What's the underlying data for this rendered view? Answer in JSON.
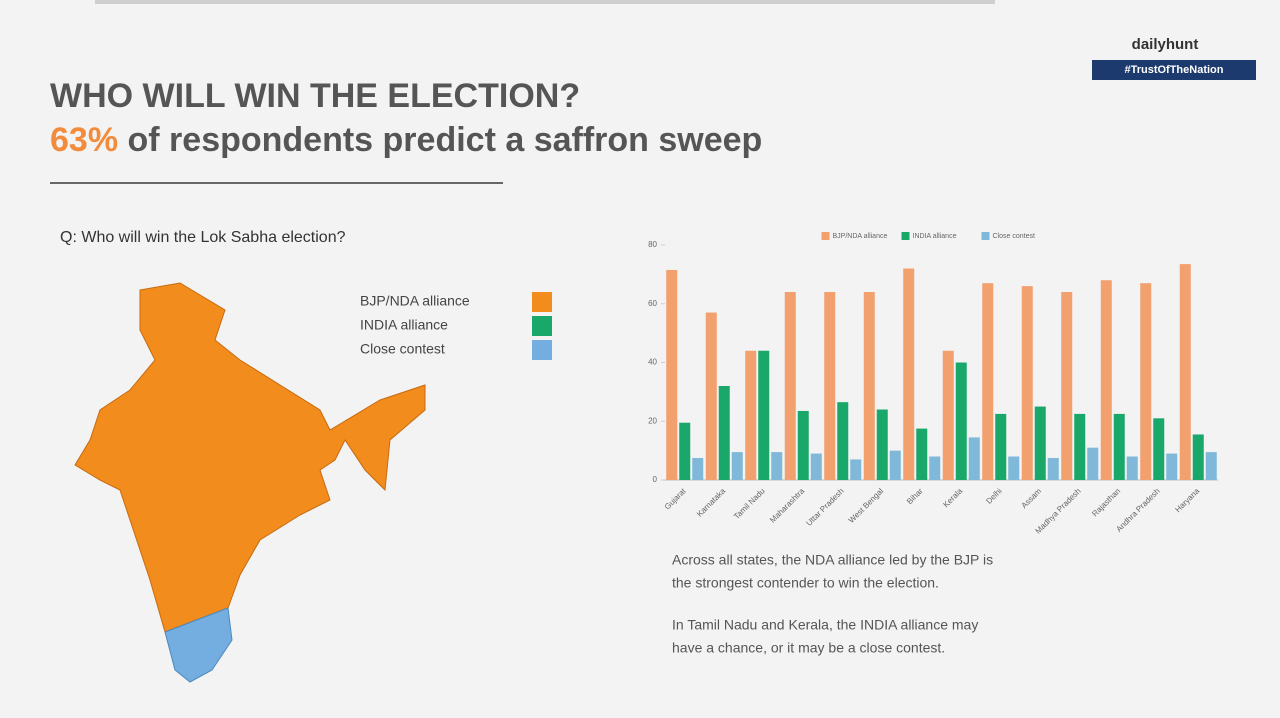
{
  "header": {
    "title": "WHO WILL WIN THE ELECTION?",
    "highlight": "63%",
    "subtitle": "of respondents predict a saffron sweep"
  },
  "brand": {
    "logo": "dailyhunt",
    "tag": "#TrustOfTheNation"
  },
  "map": {
    "question": "Q: Who will win the Lok Sabha election?",
    "legend": [
      {
        "label": "BJP/NDA alliance",
        "color": "#f28c1c"
      },
      {
        "label": "INDIA alliance",
        "color": "#1aa86a"
      },
      {
        "label": "Close contest",
        "color": "#74aee0"
      }
    ]
  },
  "notes": [
    [
      "Across all states, the NDA alliance led by the BJP is",
      "the strongest contender to win the election."
    ],
    [
      "In Tamil Nadu and Kerala, the INDIA alliance may",
      "have a chance, or it may be a close contest."
    ]
  ],
  "chart_data": {
    "type": "bar",
    "categories": [
      "Gujarat",
      "Karnataka",
      "Tamil Nadu",
      "Maharashtra",
      "Uttar Pradesh",
      "West Bengal",
      "Bihar",
      "Kerala",
      "Delhi",
      "Assam",
      "Madhya Pradesh",
      "Rajasthan",
      "Andhra Pradesh",
      "Haryana"
    ],
    "series": [
      {
        "name": "BJP/NDA alliance",
        "color": "#f2a06e",
        "values": [
          71.5,
          57,
          44,
          64,
          64,
          64,
          72,
          44,
          67,
          66,
          64,
          68,
          67,
          73.5
        ]
      },
      {
        "name": "INDIA alliance",
        "color": "#1aa86a",
        "values": [
          19.5,
          32,
          44,
          23.5,
          26.5,
          24,
          17.5,
          40,
          22.5,
          25,
          22.5,
          22.5,
          21,
          15.5
        ]
      },
      {
        "name": "Close contest",
        "color": "#7fb8d8",
        "values": [
          7.5,
          9.5,
          9.5,
          9,
          7,
          10,
          8,
          14.5,
          8,
          7.5,
          11,
          8,
          9,
          9.5
        ]
      }
    ],
    "ylim": [
      0,
      80
    ],
    "yticks": [
      0,
      20,
      40,
      60,
      80
    ],
    "grid": false,
    "legend": "top"
  }
}
